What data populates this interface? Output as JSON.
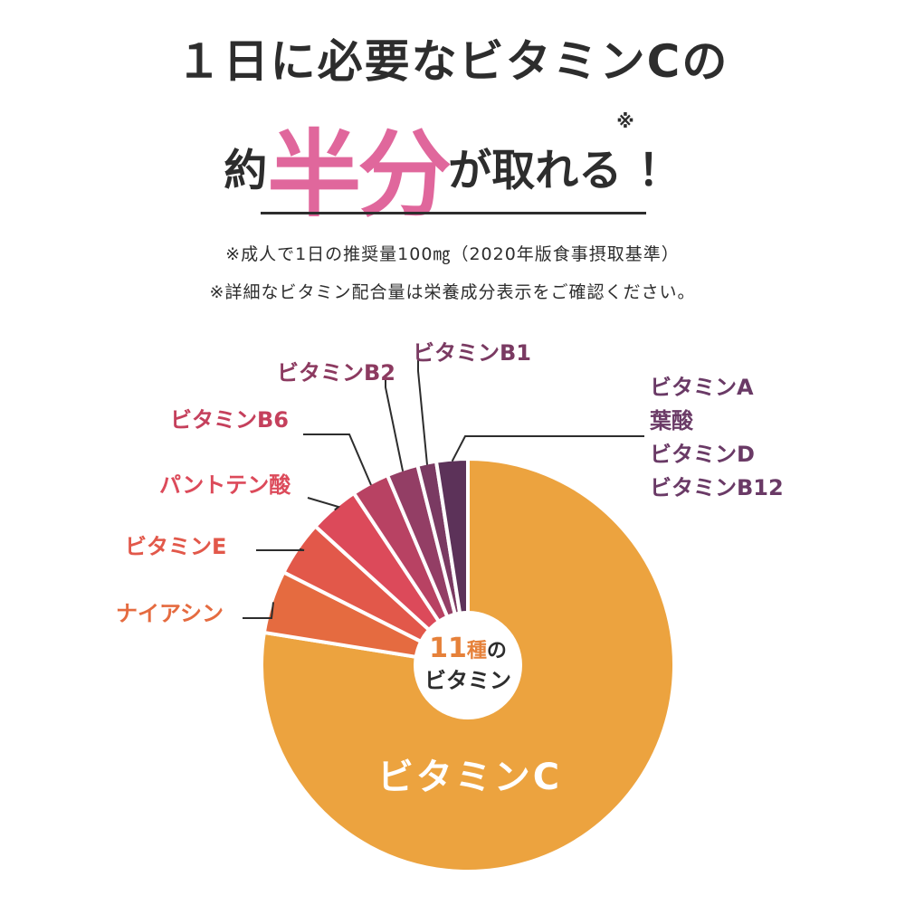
{
  "headline": {
    "line1": "１日に必要なビタミンCの",
    "line2_pre": "約",
    "line2_big": "半分",
    "line2_post": "が取れる",
    "line2_mark": "※",
    "line2_excl": "！"
  },
  "notes": [
    "※成人で1日の推奨量100㎎（2020年版食事摂取基準）",
    "※詳細なビタミン配合量は栄養成分表示をご確認ください。"
  ],
  "center_label": {
    "count": "11",
    "unit": "種",
    "particle": "の",
    "word": "ビタミン"
  },
  "colors": {
    "accent_pink": "#e0679c",
    "count_orange": "#e6813a",
    "text_dark": "#2d2d2d"
  },
  "chart_data": {
    "type": "pie",
    "categories": [
      "ビタミンC",
      "ナイアシン",
      "ビタミンE",
      "パントテン酸",
      "ビタミンB6",
      "ビタミンB2",
      "ビタミンB1",
      "ビタミンA\n葉酸\nビタミンD\nビタミンB12"
    ],
    "values": [
      79,
      5,
      4.4,
      4,
      3,
      2.5,
      1.5,
      2.5
    ],
    "slice_colors": [
      "#eca33f",
      "#e56b40",
      "#e2584a",
      "#dc4a5a",
      "#b84263",
      "#933e65",
      "#7a3a62",
      "#5c3259"
    ],
    "label_colors": [
      "#ffffff",
      "#e56b40",
      "#e2584a",
      "#dc4a5a",
      "#c5405c",
      "#8c3a60",
      "#7a3a62",
      "#6a3a66"
    ],
    "legend": "labels with leader lines"
  }
}
